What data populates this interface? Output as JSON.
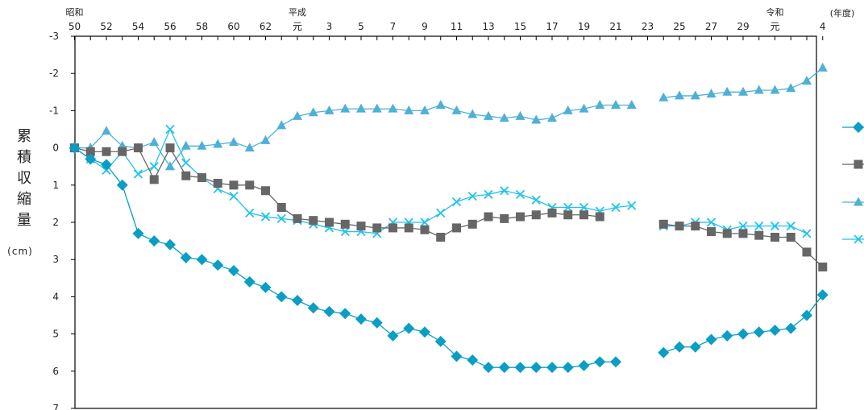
{
  "chart_data": {
    "type": "line",
    "title": "",
    "xlabel": "(年度)",
    "ylabel": "累積収縮量",
    "yunit": "(cm)",
    "ylim": [
      -3,
      7
    ],
    "y_inverted": true,
    "yticks": [
      "-3",
      "-2",
      "-1",
      "0",
      "1",
      "2",
      "3",
      "4",
      "5",
      "6",
      "7"
    ],
    "grid": false,
    "legend": "right",
    "era_markers": [
      {
        "year": 1975,
        "text": "昭和"
      },
      {
        "year": 1989,
        "text": "平成"
      },
      {
        "year": 2019,
        "text": "令和"
      }
    ],
    "x_tick_labels": [
      {
        "year": 1975,
        "text": "50"
      },
      {
        "year": 1977,
        "text": "52"
      },
      {
        "year": 1979,
        "text": "54"
      },
      {
        "year": 1981,
        "text": "56"
      },
      {
        "year": 1983,
        "text": "58"
      },
      {
        "year": 1985,
        "text": "60"
      },
      {
        "year": 1987,
        "text": "62"
      },
      {
        "year": 1989,
        "text": "元"
      },
      {
        "year": 1991,
        "text": "3"
      },
      {
        "year": 1993,
        "text": "5"
      },
      {
        "year": 1995,
        "text": "7"
      },
      {
        "year": 1997,
        "text": "9"
      },
      {
        "year": 1999,
        "text": "11"
      },
      {
        "year": 2001,
        "text": "13"
      },
      {
        "year": 2003,
        "text": "15"
      },
      {
        "year": 2005,
        "text": "17"
      },
      {
        "year": 2007,
        "text": "19"
      },
      {
        "year": 2009,
        "text": "21"
      },
      {
        "year": 2011,
        "text": "23"
      },
      {
        "year": 2013,
        "text": "25"
      },
      {
        "year": 2015,
        "text": "27"
      },
      {
        "year": 2017,
        "text": "29"
      },
      {
        "year": 2019,
        "text": "元"
      },
      {
        "year": 2022,
        "text": "4"
      }
    ],
    "xlim": [
      1975,
      2022
    ],
    "series": [
      {
        "color": "#0b9ec4",
        "marker": "diamond",
        "x": [
          1975,
          1976,
          1977,
          1978,
          1979,
          1980,
          1981,
          1982,
          1983,
          1984,
          1985,
          1986,
          1987,
          1988,
          1989,
          1990,
          1991,
          1992,
          1993,
          1994,
          1995,
          1996,
          1997,
          1998,
          1999,
          2000,
          2001,
          2002,
          2003,
          2004,
          2005,
          2006,
          2007,
          2008,
          2009,
          null,
          2011,
          2012,
          2013,
          2014,
          2015,
          2016,
          2017,
          2018,
          2019,
          2020,
          2021,
          2022
        ],
        "y": [
          0,
          0.3,
          0.45,
          1.0,
          2.3,
          2.5,
          2.6,
          2.95,
          3.0,
          3.15,
          3.3,
          3.6,
          3.75,
          4.0,
          4.1,
          4.3,
          4.4,
          4.45,
          4.6,
          4.7,
          5.05,
          4.85,
          4.95,
          5.2,
          5.6,
          5.7,
          5.9,
          5.9,
          5.9,
          5.9,
          5.9,
          5.9,
          5.85,
          5.75,
          5.75,
          5.7,
          null,
          5.5,
          5.35,
          5.35,
          5.15,
          5.05,
          5.0,
          4.95,
          4.9,
          4.85,
          4.5,
          3.95
        ]
      },
      {
        "color": "#666666",
        "marker": "square",
        "x": [
          1975,
          1976,
          1977,
          1978,
          1979,
          1980,
          1981,
          1982,
          1983,
          1984,
          1985,
          1986,
          1987,
          1988,
          1989,
          1990,
          1991,
          1992,
          1993,
          1994,
          1995,
          1996,
          1997,
          1998,
          1999,
          2000,
          2001,
          2002,
          2003,
          2004,
          2005,
          2006,
          2007,
          2008,
          null,
          2011,
          2012,
          2013,
          2014,
          2015,
          2016,
          2017,
          2018,
          2019,
          2020,
          2021,
          2022
        ],
        "y": [
          0,
          0.1,
          0.1,
          0.1,
          0.0,
          0.85,
          0.0,
          0.75,
          0.8,
          0.95,
          1.0,
          1.0,
          1.15,
          1.6,
          1.9,
          1.95,
          2.0,
          2.05,
          2.1,
          2.15,
          2.15,
          2.15,
          2.2,
          2.4,
          2.15,
          2.05,
          1.85,
          1.9,
          1.85,
          1.8,
          1.75,
          1.8,
          1.8,
          1.85,
          1.85,
          null,
          2.05,
          2.1,
          2.1,
          2.25,
          2.3,
          2.3,
          2.35,
          2.4,
          2.4,
          2.8,
          3.2
        ]
      },
      {
        "color": "#4fb0d6",
        "marker": "triangle",
        "x": [
          1975,
          1976,
          1977,
          1978,
          1979,
          1980,
          1981,
          1982,
          1983,
          1984,
          1985,
          1986,
          1987,
          1988,
          1989,
          1990,
          1991,
          1992,
          1993,
          1994,
          1995,
          1996,
          1997,
          1998,
          1999,
          2000,
          2001,
          2002,
          2003,
          2004,
          2005,
          2006,
          2007,
          2008,
          2009,
          2010,
          null,
          2012,
          2013,
          2014,
          2015,
          2016,
          2017,
          2018,
          2019,
          2020,
          2021,
          2022
        ],
        "y": [
          0,
          0.0,
          -0.45,
          -0.05,
          0.0,
          -0.15,
          0.5,
          -0.05,
          -0.05,
          -0.1,
          -0.15,
          0.0,
          -0.2,
          -0.6,
          -0.85,
          -0.95,
          -1.0,
          -1.05,
          -1.05,
          -1.05,
          -1.05,
          -1.0,
          -1.0,
          -1.15,
          -1.0,
          -0.9,
          -0.85,
          -0.8,
          -0.85,
          -0.75,
          -0.8,
          -1.0,
          -1.05,
          -1.15,
          -1.15,
          -1.15,
          null,
          -1.35,
          -1.4,
          -1.4,
          -1.45,
          -1.5,
          -1.5,
          -1.55,
          -1.55,
          -1.6,
          -1.8,
          -2.15
        ]
      },
      {
        "color": "#22c3e8",
        "marker": "x",
        "x": [
          1975,
          1976,
          1977,
          1978,
          1979,
          1980,
          1981,
          1982,
          1983,
          1984,
          1985,
          1986,
          1987,
          1988,
          1989,
          1990,
          1991,
          1992,
          1993,
          1994,
          1995,
          1996,
          1997,
          1998,
          1999,
          2000,
          2001,
          2002,
          2003,
          2004,
          2005,
          2006,
          2007,
          2008,
          2009,
          2010,
          null,
          2012,
          2013,
          2014,
          2015,
          2016,
          2017,
          2018,
          2019,
          2020,
          2021,
          2022
        ],
        "y": [
          0,
          0.3,
          0.6,
          0.1,
          0.7,
          0.5,
          -0.5,
          0.4,
          0.8,
          1.1,
          1.3,
          1.75,
          1.85,
          1.9,
          1.95,
          2.05,
          2.15,
          2.25,
          2.25,
          2.3,
          2.0,
          2.0,
          2.0,
          1.75,
          1.45,
          1.3,
          1.25,
          1.15,
          1.25,
          1.4,
          1.6,
          1.6,
          1.6,
          1.7,
          1.6,
          1.55,
          null,
          2.1,
          2.1,
          2.0,
          2.0,
          2.2,
          2.1,
          2.1,
          2.1,
          2.1,
          2.3,
          null
        ]
      }
    ]
  }
}
